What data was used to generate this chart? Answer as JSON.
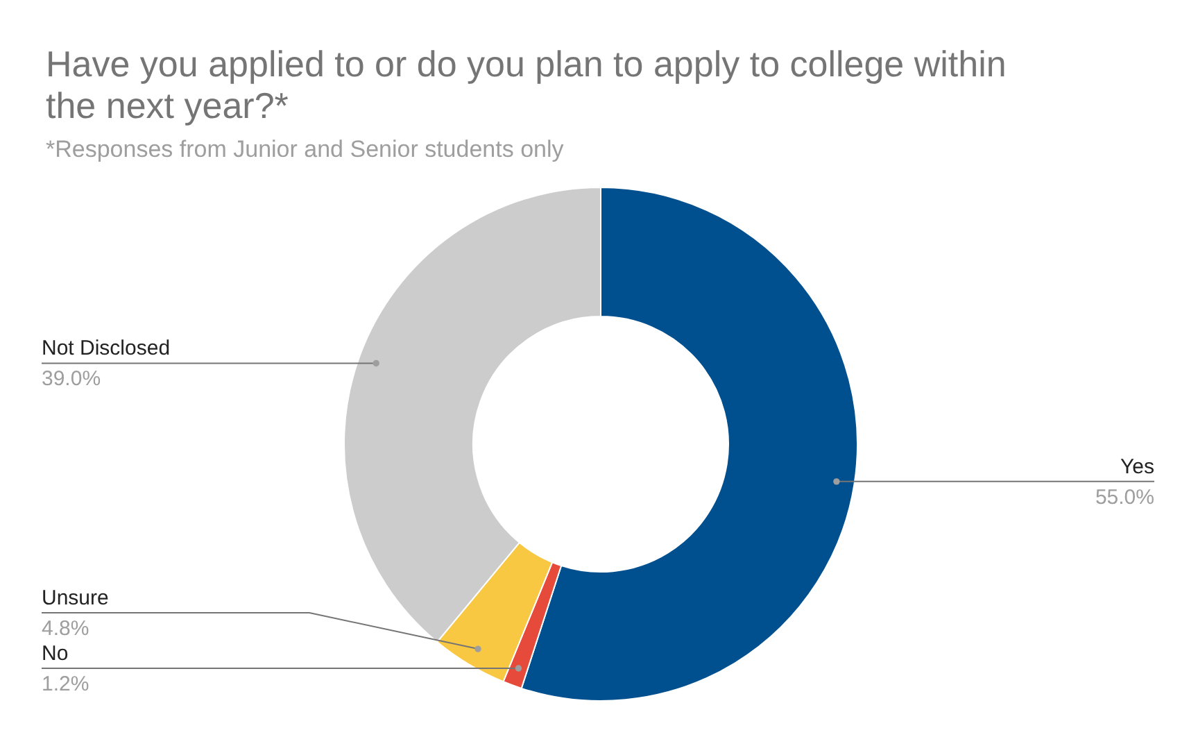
{
  "chart_data": {
    "type": "donut",
    "title": "Have you applied to or do you plan to apply to college within the next year?*",
    "subtitle": "*Responses from Junior and Senior students only",
    "categories": [
      "Yes",
      "No",
      "Unsure",
      "Not Disclosed"
    ],
    "values": [
      55.0,
      1.2,
      4.8,
      39.0
    ],
    "value_labels": [
      "55.0%",
      "1.2%",
      "4.8%",
      "39.0%"
    ],
    "colors": [
      "#00508f",
      "#e64a3a",
      "#f8c843",
      "#cccccc"
    ]
  }
}
